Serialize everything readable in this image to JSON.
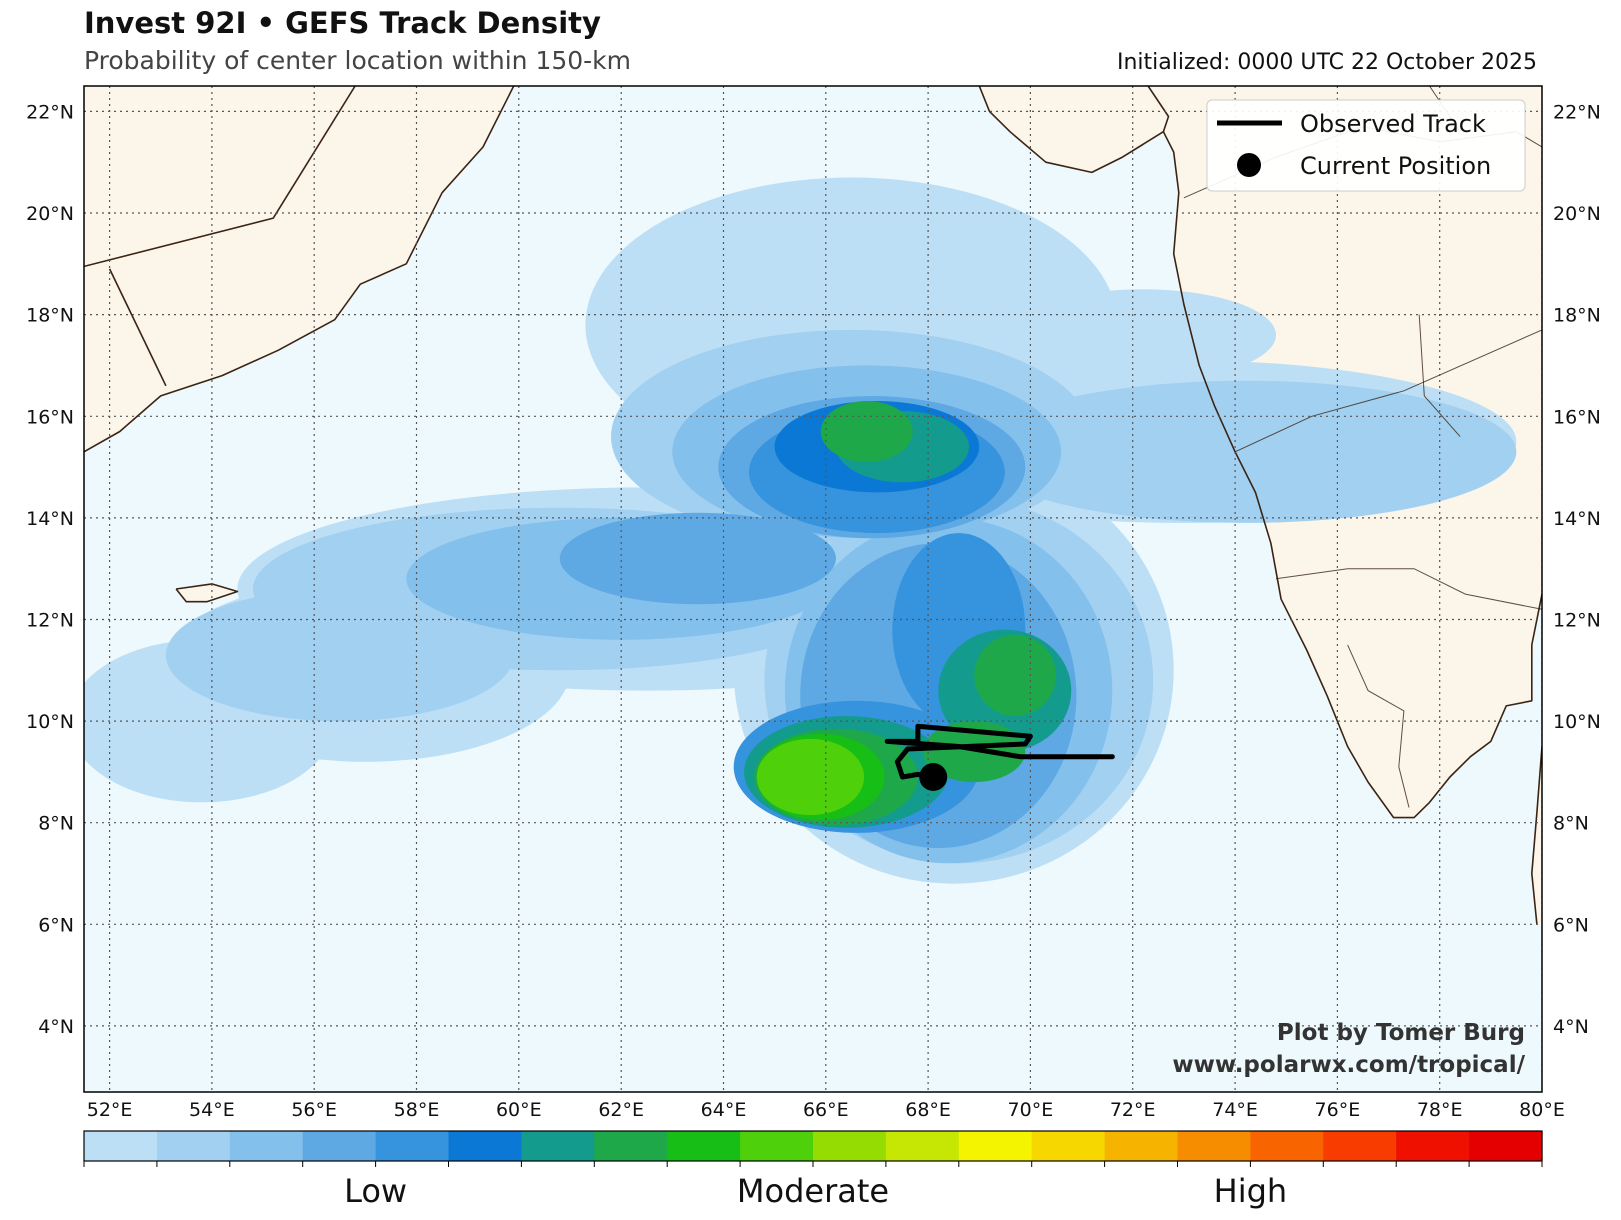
{
  "title": "Invest 92I • GEFS Track Density",
  "subtitle": "Probability of center location within 150-km",
  "initialized": "Initialized: 0000 UTC 22 October 2025",
  "credit": {
    "line1": "Plot by Tomer Burg",
    "line2": "www.polarwx.com/tropical/"
  },
  "legend": {
    "track_label": "Observed Track",
    "position_label": "Current Position"
  },
  "extent": {
    "lon_min": 51.5,
    "lon_max": 80,
    "lat_min": 2.7,
    "lat_max": 22.5
  },
  "lat_ticks": [
    {
      "value": 22,
      "label": "22°N"
    },
    {
      "value": 20,
      "label": "20°N"
    },
    {
      "value": 18,
      "label": "18°N"
    },
    {
      "value": 16,
      "label": "16°N"
    },
    {
      "value": 14,
      "label": "14°N"
    },
    {
      "value": 12,
      "label": "12°N"
    },
    {
      "value": 10,
      "label": "10°N"
    },
    {
      "value": 8,
      "label": "8°N"
    },
    {
      "value": 6,
      "label": "6°N"
    },
    {
      "value": 4,
      "label": "4°N"
    }
  ],
  "lon_ticks": [
    {
      "value": 52,
      "label": "52°E"
    },
    {
      "value": 54,
      "label": "54°E"
    },
    {
      "value": 56,
      "label": "56°E"
    },
    {
      "value": 58,
      "label": "58°E"
    },
    {
      "value": 60,
      "label": "60°E"
    },
    {
      "value": 62,
      "label": "62°E"
    },
    {
      "value": 64,
      "label": "64°E"
    },
    {
      "value": 66,
      "label": "66°E"
    },
    {
      "value": 68,
      "label": "68°E"
    },
    {
      "value": 70,
      "label": "70°E"
    },
    {
      "value": 72,
      "label": "72°E"
    },
    {
      "value": 74,
      "label": "74°E"
    },
    {
      "value": 76,
      "label": "76°E"
    },
    {
      "value": 78,
      "label": "78°E"
    },
    {
      "value": 80,
      "label": "80°E"
    }
  ],
  "colorbar": {
    "colors": [
      "#bcdff6",
      "#a2d0f1",
      "#84c0ec",
      "#5ea9e4",
      "#3693dd",
      "#0a78d4",
      "#139c8e",
      "#1ea84a",
      "#16be16",
      "#4ed00a",
      "#94dc02",
      "#c6e604",
      "#f4f400",
      "#f6d800",
      "#f6b400",
      "#f68c00",
      "#f86400",
      "#f83c00",
      "#f01000",
      "#e40000"
    ],
    "labels": [
      {
        "text": "Low",
        "position": 0.2
      },
      {
        "text": "Moderate",
        "position": 0.5
      },
      {
        "text": "High",
        "position": 0.8
      }
    ]
  },
  "map_colors": {
    "ocean": "#eef9fd",
    "land": "#fbf5ea",
    "coast": "#3b2414",
    "grid": "#555555"
  },
  "density_levels": [
    {
      "level": 1,
      "blobs": [
        [
          66.5,
          17.8,
          5.2,
          2.9
        ],
        [
          73,
          15.5,
          6.5,
          1.6
        ],
        [
          62.5,
          12.6,
          8,
          2
        ],
        [
          57,
          11,
          4,
          1.8
        ],
        [
          68.5,
          11,
          4.3,
          4.2
        ],
        [
          53.8,
          10,
          2.6,
          1.6
        ],
        [
          72.2,
          17.6,
          2.6,
          0.9
        ]
      ]
    },
    {
      "level": 2,
      "blobs": [
        [
          66.5,
          15.6,
          4.7,
          2.1
        ],
        [
          74.2,
          15.3,
          5.3,
          1.4
        ],
        [
          60.8,
          12.6,
          6,
          1.6
        ],
        [
          56.5,
          11.3,
          3.4,
          1.3
        ],
        [
          68.6,
          10.8,
          3.8,
          3.6
        ]
      ]
    },
    {
      "level": 3,
      "blobs": [
        [
          66.8,
          15.3,
          3.8,
          1.7
        ],
        [
          62,
          12.8,
          4.2,
          1.2
        ],
        [
          68.4,
          10.6,
          3.2,
          3.4
        ]
      ]
    },
    {
      "level": 4,
      "blobs": [
        [
          66.9,
          15.0,
          3.0,
          1.4
        ],
        [
          63.5,
          13.2,
          2.7,
          0.9
        ],
        [
          68.2,
          10.5,
          2.7,
          3.0
        ]
      ]
    },
    {
      "level": 5,
      "blobs": [
        [
          67.0,
          14.9,
          2.5,
          1.2
        ],
        [
          68.6,
          11.8,
          1.3,
          1.9
        ],
        [
          66.6,
          9.1,
          2.4,
          1.3
        ]
      ]
    },
    {
      "level": 6,
      "blobs": [
        [
          67.0,
          15.4,
          2.0,
          0.9
        ]
      ]
    },
    {
      "level": 7,
      "blobs": [
        [
          67.5,
          15.4,
          1.3,
          0.7
        ],
        [
          69.5,
          10.6,
          1.3,
          1.2
        ],
        [
          66.4,
          9.0,
          2.0,
          1.1
        ]
      ]
    },
    {
      "level": 8,
      "blobs": [
        [
          66.8,
          15.7,
          0.9,
          0.6
        ],
        [
          69.7,
          10.9,
          0.8,
          0.8
        ],
        [
          66.2,
          8.9,
          1.6,
          0.95
        ],
        [
          68.9,
          9.4,
          1.0,
          0.6
        ]
      ]
    },
    {
      "level": 9,
      "blobs": [
        [
          65.9,
          8.9,
          1.25,
          0.85
        ]
      ]
    },
    {
      "level": 10,
      "blobs": [
        [
          65.7,
          8.9,
          1.05,
          0.75
        ]
      ]
    }
  ],
  "observed_track": [
    [
      71.6,
      9.3
    ],
    [
      69.8,
      9.3
    ],
    [
      68.6,
      9.5
    ],
    [
      67.2,
      9.6
    ],
    [
      67.8,
      9.6
    ],
    [
      67.8,
      9.9
    ],
    [
      70.0,
      9.7
    ],
    [
      69.9,
      9.55
    ],
    [
      67.6,
      9.45
    ],
    [
      67.4,
      9.2
    ],
    [
      67.5,
      8.9
    ],
    [
      67.8,
      8.95
    ],
    [
      68.1,
      8.9
    ]
  ],
  "current_position": [
    68.1,
    8.9
  ],
  "coastlines": {
    "arabia": [
      [
        51.5,
        18.95
      ],
      [
        55.2,
        19.9
      ],
      [
        56.8,
        22.5
      ]
    ],
    "arabia_inner": [
      [
        52.0,
        18.9
      ],
      [
        53.1,
        16.6
      ]
    ],
    "arabia_south": [
      [
        51.5,
        15.3
      ],
      [
        52.2,
        15.7
      ],
      [
        53.0,
        16.4
      ],
      [
        54.2,
        16.8
      ],
      [
        55.3,
        17.3
      ],
      [
        56.4,
        17.9
      ],
      [
        56.9,
        18.6
      ],
      [
        57.8,
        19.0
      ],
      [
        58.5,
        20.4
      ],
      [
        59.3,
        21.3
      ],
      [
        59.8,
        22.3
      ],
      [
        59.9,
        22.5
      ]
    ],
    "socotra": [
      [
        53.3,
        12.6
      ],
      [
        54.0,
        12.7
      ],
      [
        54.5,
        12.55
      ],
      [
        53.9,
        12.35
      ],
      [
        53.5,
        12.35
      ],
      [
        53.3,
        12.6
      ]
    ],
    "india_gujarat": [
      [
        69.0,
        22.5
      ],
      [
        69.2,
        22.0
      ],
      [
        69.6,
        21.6
      ],
      [
        70.3,
        21.0
      ],
      [
        71.2,
        20.8
      ],
      [
        71.8,
        21.1
      ],
      [
        72.6,
        21.6
      ],
      [
        72.8,
        21.2
      ],
      [
        72.9,
        20.4
      ],
      [
        72.8,
        19.2
      ],
      [
        73.0,
        18.2
      ],
      [
        73.3,
        17.0
      ],
      [
        73.6,
        16.2
      ],
      [
        74.0,
        15.3
      ],
      [
        74.4,
        14.5
      ],
      [
        74.7,
        13.5
      ],
      [
        74.9,
        12.4
      ],
      [
        75.4,
        11.4
      ],
      [
        75.8,
        10.5
      ],
      [
        76.2,
        9.5
      ],
      [
        76.6,
        8.8
      ],
      [
        77.1,
        8.1
      ],
      [
        77.5,
        8.1
      ],
      [
        77.8,
        8.4
      ],
      [
        78.2,
        8.9
      ],
      [
        78.6,
        9.3
      ],
      [
        79.0,
        9.6
      ],
      [
        79.3,
        10.3
      ],
      [
        79.8,
        10.4
      ],
      [
        79.8,
        11.5
      ],
      [
        80.0,
        12.5
      ]
    ],
    "india_khambhat": [
      [
        72.3,
        22.5
      ],
      [
        72.7,
        21.9
      ],
      [
        72.6,
        21.6
      ]
    ],
    "sri_lanka": [
      [
        79.9,
        6.0
      ],
      [
        79.8,
        7.0
      ],
      [
        79.9,
        8.2
      ],
      [
        80.0,
        9.5
      ]
    ],
    "state_lines": [
      [
        [
          74.0,
          15.3
        ],
        [
          75.5,
          16.0
        ],
        [
          77.3,
          16.5
        ],
        [
          80.0,
          17.7
        ]
      ],
      [
        [
          74.8,
          12.8
        ],
        [
          76.2,
          13.0
        ],
        [
          77.5,
          13.0
        ],
        [
          78.5,
          12.5
        ],
        [
          80.0,
          12.2
        ]
      ],
      [
        [
          76.2,
          11.5
        ],
        [
          76.6,
          10.6
        ],
        [
          77.3,
          10.2
        ],
        [
          77.2,
          9.1
        ],
        [
          77.4,
          8.3
        ]
      ],
      [
        [
          73.0,
          20.3
        ],
        [
          74.8,
          21.1
        ],
        [
          76.5,
          21.7
        ],
        [
          78.0,
          21.4
        ],
        [
          79.5,
          21.6
        ],
        [
          80.0,
          21.3
        ]
      ],
      [
        [
          77.6,
          18.0
        ],
        [
          77.7,
          16.4
        ],
        [
          78.4,
          15.6
        ]
      ],
      [
        [
          77.8,
          22.5
        ],
        [
          78.4,
          21.6
        ]
      ]
    ]
  }
}
